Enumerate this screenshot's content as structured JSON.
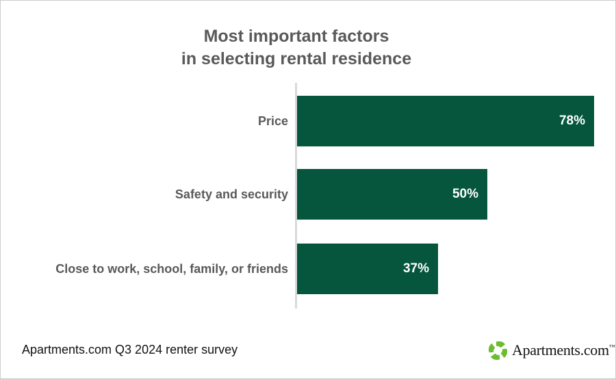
{
  "title": {
    "line1": "Most important factors",
    "line2": "in selecting rental residence"
  },
  "chart_data": {
    "type": "bar",
    "orientation": "horizontal",
    "title": "Most important factors in selecting rental residence",
    "categories": [
      "Price",
      "Safety and security",
      "Close to work, school, family, or friends"
    ],
    "values": [
      78,
      50,
      37
    ],
    "value_labels": [
      "78%",
      "50%",
      "37%"
    ],
    "xlabel": "",
    "ylabel": "",
    "xlim": [
      0,
      100
    ],
    "grid": false,
    "legend": "none",
    "bar_color": "#05563C",
    "axis_line_color": "#D9D9D9",
    "value_label_position": "inside-end"
  },
  "footer": {
    "source_note": "Apartments.com Q3 2024 renter survey"
  },
  "logo": {
    "icon": "apartments-pinwheel-icon",
    "icon_color": "#6CBD2F",
    "text": "Apartments.com",
    "trademark": "™"
  },
  "colors": {
    "background": "#FFFFFF",
    "border": "#CBCBCB",
    "title_text": "#595959",
    "category_label_text": "#595959",
    "value_label_text": "#FFFFFF"
  }
}
